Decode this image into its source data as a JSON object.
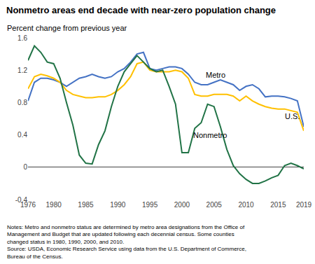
{
  "chart_data": {
    "type": "line",
    "title": "Nonmetro areas end decade with near-zero population change",
    "ylabel": "Percent change from previous year",
    "notes": [
      "Notes: Metro and nonmetro status are determined by metro area designations from the Office of",
      "Management and Budget that are updated following each decennial census. Some counties",
      "changed status in 1980, 1990, 2000, and 2010.",
      "Source: USDA, Economic Research Service using data from the U.S. Department of Commerce,",
      "Bureau of the Census."
    ],
    "x": [
      1976,
      1977,
      1978,
      1979,
      1980,
      1981,
      1982,
      1983,
      1984,
      1985,
      1986,
      1987,
      1988,
      1989,
      1990,
      1991,
      1992,
      1993,
      1994,
      1995,
      1996,
      1997,
      1998,
      1999,
      2000,
      2001,
      2002,
      2003,
      2004,
      2005,
      2006,
      2007,
      2008,
      2009,
      2010,
      2011,
      2012,
      2013,
      2014,
      2015,
      2016,
      2017,
      2018,
      2019
    ],
    "series": [
      {
        "name": "Metro",
        "color": "#4472c4",
        "label_x": 2003.5,
        "label_y": 1.14,
        "values": [
          0.82,
          1.05,
          1.1,
          1.1,
          1.08,
          1.05,
          1.0,
          1.05,
          1.1,
          1.12,
          1.15,
          1.12,
          1.1,
          1.12,
          1.18,
          1.22,
          1.3,
          1.4,
          1.42,
          1.22,
          1.2,
          1.22,
          1.24,
          1.24,
          1.22,
          1.15,
          1.05,
          1.02,
          1.02,
          1.05,
          1.08,
          1.05,
          1.02,
          0.95,
          1.0,
          1.02,
          0.97,
          0.87,
          0.88,
          0.88,
          0.87,
          0.85,
          0.82,
          0.5
        ]
      },
      {
        "name": "U.S.",
        "color": "#ffc000",
        "label_x": 2015.8,
        "label_y": 0.63,
        "values": [
          0.97,
          1.12,
          1.15,
          1.13,
          1.1,
          1.05,
          0.95,
          0.9,
          0.88,
          0.86,
          0.86,
          0.87,
          0.87,
          0.9,
          0.95,
          1.02,
          1.12,
          1.28,
          1.3,
          1.2,
          1.18,
          1.18,
          1.18,
          1.2,
          1.18,
          1.1,
          0.9,
          0.88,
          0.88,
          0.9,
          0.9,
          0.9,
          0.88,
          0.82,
          0.88,
          0.82,
          0.78,
          0.75,
          0.73,
          0.72,
          0.72,
          0.7,
          0.68,
          0.45
        ]
      },
      {
        "name": "Nonmetro",
        "color": "#217346",
        "label_x": 2001.5,
        "label_y": 0.4,
        "values": [
          1.32,
          1.5,
          1.42,
          1.3,
          1.28,
          1.1,
          0.8,
          0.52,
          0.15,
          0.05,
          0.04,
          0.28,
          0.45,
          0.75,
          1.0,
          1.18,
          1.28,
          1.38,
          1.3,
          1.22,
          1.18,
          1.2,
          1.0,
          0.78,
          0.18,
          0.18,
          0.48,
          0.55,
          0.78,
          0.75,
          0.5,
          0.22,
          0.02,
          -0.08,
          -0.15,
          -0.2,
          -0.2,
          -0.17,
          -0.13,
          -0.1,
          0.02,
          0.05,
          0.02,
          -0.02
        ]
      }
    ],
    "xlim": [
      1976,
      2019
    ],
    "xticks": [
      1976,
      1980,
      1985,
      1990,
      1995,
      2000,
      2005,
      2010,
      2015,
      2019
    ],
    "ylim": [
      -0.4,
      1.6
    ],
    "yticks": [
      -0.4,
      0,
      0.4,
      0.8,
      1.2,
      1.6
    ],
    "grid": false
  }
}
